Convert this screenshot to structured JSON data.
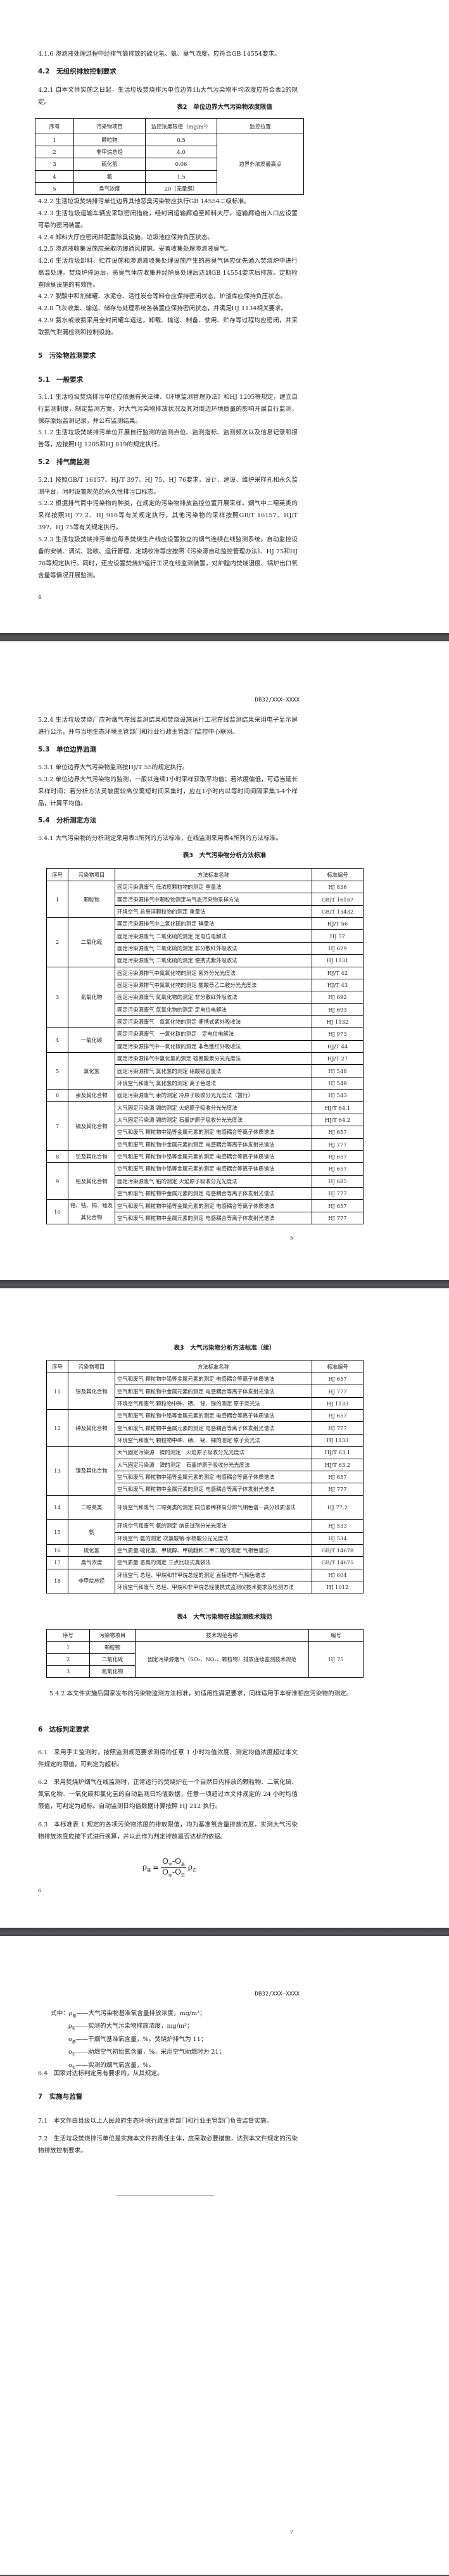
{
  "doc_code": "DB32/XXX—XXXX",
  "page1": {
    "p416": "4.1.6 渗滤液处理过程中经排气筒排放的硫化氢、氨、臭气浓度，应符合GB 14554要求。",
    "h42": "4.2　无组织排放控制要求",
    "p421": "4.2.1 自本文件实施之日起，生活垃圾焚烧排污单位边界1h大气污染物平均浓度应符合表2的规定。",
    "table2": {
      "title": "表2　单位边界大气污染物浓度限值",
      "headers": [
        "序号",
        "污染物项目",
        "监控浓度限值（mg/m³）",
        "监控位置"
      ],
      "rows": [
        [
          "1",
          "颗粒物",
          "0.5"
        ],
        [
          "2",
          "非甲烷总烃",
          "4.0"
        ],
        [
          "3",
          "硫化氢",
          "0.06"
        ],
        [
          "4",
          "氨",
          "1.5"
        ],
        [
          "5",
          "臭气浓度",
          "20（无量纲）"
        ]
      ],
      "location": "边界外浓度最高点"
    },
    "p422": "4.2.2 生活垃圾焚烧排污单位边界其他恶臭污染物应执行GB 14554二级标准。",
    "p423": "4.2.3 生活垃圾运输车辆应采取密闭措施，经封闭运输廊道至卸料大厅。运输廊道出入口应设置可靠的密闭装置。",
    "p424": "4.2.4 卸料大厅应密闭并配置除臭设施。垃圾池应保持负压状态。",
    "p425": "4.2.5 渗滤液收集设施应采取防爆通风措施。妥善收集处理渗滤液臭气。",
    "p426": "4.2.6 生活垃圾卸料、贮存设施和渗滤液收集处理设施产生的恶臭气体应优先通入焚烧炉中进行高温处理。焚烧炉停运后，恶臭气体应收集并经除臭处理后达到GB 14554要求后排放。定期检查除臭设施的有效性。",
    "p427": "4.2.7 脱酸中和剂储罐、水泥仓、活性炭仓等料仓应保持密闭状态，炉渣库应保持负压状态。",
    "p428": "4.2.8 飞灰收集、输送、储存与处理系统各装置应保持密闭状态，并满足HJ 1134相关要求。",
    "p429": "4.2.9 氨水或液氨采用全封闭罐车运送，卸载、输送、制备、使用、贮存等过程均应密闭，并采取氨气泄漏检测和控制设施。",
    "h5": "5　污染物监测要求",
    "h51": "5.1　一般要求",
    "p511": "5.1.1 生活垃圾焚烧排污单位应依据有关法律、《环境监测管理办法》和HJ 1205等规定，建立自行监测制度，制定监测方案，对大气污染物排放状况及其对周边环境质量的影响开展自行监测，保存原始监测记录，并公布监测结果。",
    "p512": "5.1.2 生活垃圾焚烧排污单位开展自行监测的监测点位、监测指标、监测频次以及信息记录和报告等，应按照HJ 1205和HJ 819的规定执行。",
    "h52": "5.2　排气筒监测",
    "p521": "5.2.1 按照GB/T 16157、HJ/T 397、HJ 75、HJ 76要求，设计、建设、维护采样孔和永久监测平台，同时设置规范的永久性排污口标志。",
    "p522": "5.2.2 根据排气筒中污染物的种类，在规定的污染物排放监控位置开展采样。烟气中二噁英类的采样按照HJ 77.2、HJ 916等有关规定执行，其他污染物的采样按照GB/T 16157、HJ/T 397、HJ 75等有关规定执行。",
    "p523": "5.2.3 生活垃圾焚烧排污单位每条焚烧生产线应设置独立的烟气连续在线监测系统。自动监控设备的安装、调试、验收、运行管理、定期校准等应按照《污染源自动监控管理办法》、HJ 75和HJ 76等规定执行。同时，还应设置焚烧炉运行工况在线监测装置，对炉膛内焚烧温度、锅炉出口氧含量等情况开展监测。",
    "page_number": "4"
  },
  "page2": {
    "p524": "5.2.4 生活垃圾焚烧厂应对烟气在线监测结果和焚烧设施运行工况在线监测结果采用电子显示屏进行公示，并与当地生态环境主管部门和行业行政主管部门监控中心联网。",
    "h53": "5.3　单位边界监测",
    "p531": "5.3.1 单位边界大气污染物监测按HJ/T 55的规定执行。",
    "p532": "5.3.2 单位边界大气污染物的监测，一般以连续1小时采样获取平均值；若浓度偏低，可适当延长采样时间；若分析方法灵敏度较高仅需短时间采集时，应在1小时内以等时间间隔采集3-4个样品，计算平均值。",
    "h54": "5.4　分析测定方法",
    "p541": "5.4.1 大气污染物的分析测定采用表3所列的方法标准，在线监测采用表4所列的方法标准。",
    "table3_title": "表3　大气污染物分析方法标准",
    "page_number": "5"
  },
  "table3_headers": [
    "序号",
    "污染物项目",
    "方法标准名称",
    "标准编号"
  ],
  "table3_part1": [
    {
      "no": "1",
      "item": "颗粒物",
      "methods": [
        [
          "固定污染源废气 低浓度颗粒物的测定 重量法",
          "HJ 836"
        ],
        [
          "固定污染源排气中颗粒物测定与气态污染物采样方法",
          "GB/T 16157"
        ],
        [
          "环境空气 总悬浮颗粒物的测定 重量法",
          "GB/T 15432"
        ]
      ]
    },
    {
      "no": "2",
      "item": "二氧化硫",
      "methods": [
        [
          "固定污染源排气中二氧化硫的测定 碘量法",
          "HJ/T 56"
        ],
        [
          "固定污染源废气 二氧化硫的测定 定电位电解法",
          "HJ 57"
        ],
        [
          "固定污染源废气 二氧化硫的测定 非分散红外吸收法",
          "HJ 629"
        ],
        [
          "固定污染源废气 二氧化硫的测定 便携式紫外吸收法",
          "HJ 1131"
        ]
      ]
    },
    {
      "no": "3",
      "item": "氮氧化物",
      "methods": [
        [
          "固定污染源排气中氮氧化物的测定 紫外分光光度法",
          "HJ/T 42"
        ],
        [
          "固定污染源排气中氮氧化物的测定 盐酸萘乙二胺分光光度法",
          "HJ/T 43"
        ],
        [
          "固定污染源废气 氮氧化物的测定 非分散红外吸收法",
          "HJ 692"
        ],
        [
          "固定污染源废气 氮氧化物的测定 定电位电解法",
          "HJ 693"
        ],
        [
          "固定污染源废气　氮氧化物的测定 便携式紫外吸收法",
          "HJ 1132"
        ]
      ]
    },
    {
      "no": "4",
      "item": "一氧化碳",
      "methods": [
        [
          "固定污染源废气　一氧化碳的测定　定电位电解法",
          "HJ 973"
        ],
        [
          "固定污染源排气中一氧化碳的测定 非色散红外吸收法",
          "HJ/T 44"
        ]
      ]
    },
    {
      "no": "5",
      "item": "氯化氢",
      "methods": [
        [
          "固定污染源排气中氯化氢的测定 硫氰酸汞分光光度法",
          "HJ/T 27"
        ],
        [
          "固定污染源排气 氯化氢的测定 硝酸银容量法",
          "HJ 548"
        ],
        [
          "环境空气和废气 氯化氢的测定 离子色谱法",
          "HJ 549"
        ]
      ]
    },
    {
      "no": "6",
      "item": "汞及其化合物",
      "methods": [
        [
          "固定污染源废气 汞的测定 冷原子吸收分光光度法（暂行）",
          "HJ 543"
        ]
      ]
    },
    {
      "no": "7",
      "item": "镉及其化合物",
      "methods": [
        [
          "大气固定污染源 镉的测定 火焰原子吸收分光光度法",
          "HJ/T 64.1"
        ],
        [
          "大气固定污染源 镉的测定 石墨炉原子吸收分光光度法",
          "HJ/T 64.2"
        ],
        [
          "空气和废气 颗粒物中铅等金属元素的测定 电感耦合等离子体质谱法",
          "HJ 657"
        ],
        [
          "空气和废气 颗粒物中金属元素的测定 电感耦合等离子体发射光谱法",
          "HJ 777"
        ]
      ]
    },
    {
      "no": "8",
      "item": "铊及其化合物",
      "methods": [
        [
          "空气和废气 颗粒物中铅等金属元素的测定 电感耦合等离子体质谱法",
          "HJ 657"
        ]
      ]
    },
    {
      "no": "9",
      "item": "铅及其化合物",
      "methods": [
        [
          "空气和废气 颗粒物中铅等金属元素的测定 电感耦合等离子体质谱法",
          "HJ 657"
        ],
        [
          "固定污染源废气 铅的测定 火焰原子吸收分光光度法",
          "HJ 685"
        ],
        [
          "空气和废气 颗粒物中金属元素的测定 电感耦合等离子体发射光谱法",
          "HJ 777"
        ]
      ]
    },
    {
      "no": "10",
      "item": "铬、钴、铜、锰及其化合物",
      "methods": [
        [
          "空气和废气 颗粒物中铅等金属元素的测定 电感耦合等离子体质谱法",
          "HJ 657"
        ],
        [
          "空气和废气 颗粒物中金属元素的测定 电感耦合等离子体发射光谱法",
          "HJ 777"
        ]
      ]
    }
  ],
  "page3": {
    "table3_cont_title": "表3　大气污染物分析方法标准（续）",
    "table4": {
      "title": "表4　大气污染物在线监测技术规范",
      "headers": [
        "序号",
        "污染物项目",
        "技术规范名称",
        "编号"
      ],
      "rows": [
        [
          "1",
          "颗粒物"
        ],
        [
          "2",
          "二氧化硫"
        ],
        [
          "3",
          "氮氧化物"
        ]
      ],
      "spec_name": "固定污染源烟气（SO₂、NOₓ、颗粒物）排放连续监测技术规范",
      "spec_code": "HJ 75"
    },
    "p542": "5.4.2 本文件实施后国家发布的污染物监测方法标准，如适用性满足要求，同样适用于本标准相应污染物的测定。",
    "h6": "6　达标判定要求",
    "p61": "6.1　采用手工监测时，按照监测规范要求测得的任意 1 小时均值浓度、测定均值浓度超过本文件规定的限值，可判定为超标。",
    "p62": "6.2　采用焚烧炉烟气在线监测时，正常运行的焚烧炉在一个自然日内排放的颗粒物、二氧化硫、氮氧化物、一氧化碳和氯化氢的自动监测日均值数据，任意一项超过本文件规定的 24 小时均值限值，可判定为超标。自动监测日均值数据计算按照 HJ 212 执行。",
    "p63": "6.3　本标准表 1 规定的各项污染物浓度的排放限值，均为基准氧含量排放浓度，实测大气污染物排放浓度应按下式进行换算，并以此作为判定排放是否达标的依据。",
    "formula": {
      "lhs": "ρ",
      "lhs_sub": "基",
      "eq": "=",
      "n1": "O",
      "n1_sub": "空",
      "minus": "-",
      "n2": "O",
      "n2_sub": "基",
      "d1": "O",
      "d1_sub": "空",
      "d2": "O",
      "d2_sub": "实",
      "rhs": "ρ",
      "rhs_sub": "实"
    },
    "page_number": "6"
  },
  "table3_part2": [
    {
      "no": "11",
      "item": "锑及其化合物",
      "methods": [
        [
          "空气和废气 颗粒物中铅等金属元素的测定 电感耦合等离子体质谱法",
          "HJ 657"
        ],
        [
          "空气和废气 颗粒物中金属元素的测定 电感耦合等离子体发射光谱法",
          "HJ 777"
        ],
        [
          "环境空气和废气 颗粒物中砷、硒、 铋、锑的测定 原子荧光法",
          "HJ 1133"
        ]
      ]
    },
    {
      "no": "12",
      "item": "砷及其化合物",
      "methods": [
        [
          "空气和废气 颗粒物中铅等金属元素的测定 电感耦合等离子体质谱法",
          "HJ 657"
        ],
        [
          "空气和废气 颗粒物中金属元素的测定 电感耦合等离子体发射光谱法",
          "HJ 777"
        ],
        [
          "环境空气和废气 颗粒物中砷、硒、 铋、锑的测定 原子荧光法",
          "HJ 1133"
        ]
      ]
    },
    {
      "no": "13",
      "item": "镍及其化合物",
      "methods": [
        [
          "大气固定污染源　镍的测定　火焰原子吸收分光光度法",
          "HJ/T 63.1"
        ],
        [
          "大气固定污染源　镍的测定　石墨炉原子吸收分光光度法",
          "HJ/T 63.2"
        ],
        [
          "空气和废气 颗粒物中铅等金属元素的测定 电感耦合等离子体质谱法",
          "HJ 657"
        ],
        [
          "空气和废气 颗粒物中金属元素的测定 电感耦合等离子体发射光谱法",
          "HJ 777"
        ]
      ]
    },
    {
      "no": "14",
      "item": "二噁英类",
      "methods": [
        [
          "环境空气和废气 二噁英类的测定 同位素稀释高分辨气相色谱－高分辨质谱法",
          "HJ 77.2"
        ]
      ]
    },
    {
      "no": "15",
      "item": "氨",
      "methods": [
        [
          "环境空气和废气 氨的测定 纳氏试剂分光光度法",
          "HJ 533"
        ],
        [
          "环境空气 氨的测定 次氯酸钠-水杨酸分光光度法",
          "HJ 534"
        ]
      ]
    },
    {
      "no": "16",
      "item": "硫化氢",
      "methods": [
        [
          "空气质量 硫化氢、甲硫醇、甲硫醚和二甲二硫的测定 气相色谱法",
          "GB/T 14678"
        ]
      ]
    },
    {
      "no": "17",
      "item": "臭气浓度",
      "methods": [
        [
          "空气质量 恶臭的测定 三点比较式臭袋法",
          "GB/T 14675"
        ]
      ]
    },
    {
      "no": "18",
      "item": "非甲烷总烃",
      "methods": [
        [
          "环境空气 总烃、甲烷和非甲烷总烃的测定 直接进样-气相色谱法",
          "HJ 604"
        ],
        [
          "环境空气和废气 总烃、甲烷和非甲烷总烃便携式监测仪技术要求及检测方法",
          "HJ 1012"
        ]
      ]
    }
  ],
  "page4": {
    "symbols_label": "式中：",
    "symbols": [
      {
        "sym": "ρ",
        "sub": "基",
        "desc": "——大气污染物基准氧含量排放浓度，mg/m³；"
      },
      {
        "sym": "ρ",
        "sub": "实",
        "desc": "——实测的大气污染物排放浓度，mg/m³；"
      },
      {
        "sym": "o",
        "sub": "基",
        "desc": "——干烟气基准氧含量，%。焚烧炉排气为 11；"
      },
      {
        "sym": "o",
        "sub": "空",
        "desc": "——助燃空气初始氧含量，%。采用空气助燃时为 21；"
      },
      {
        "sym": "o",
        "sub": "实",
        "desc": "——实测的烟气氧含量，%。"
      }
    ],
    "p64": "6.4　国家对达标判定另有要求的，从其规定。",
    "h7": "7　实施与监督",
    "p71": "7.1　本文件由县级以上人民政府生态环境行政主管部门和行业主管部门负责监督实施。",
    "p72": "7.2　生活垃圾焚烧排污单位是实施本文件的责任主体，应采取必要措施，达到本文件规定的污染物排放控制要求。",
    "page_number": "7"
  }
}
